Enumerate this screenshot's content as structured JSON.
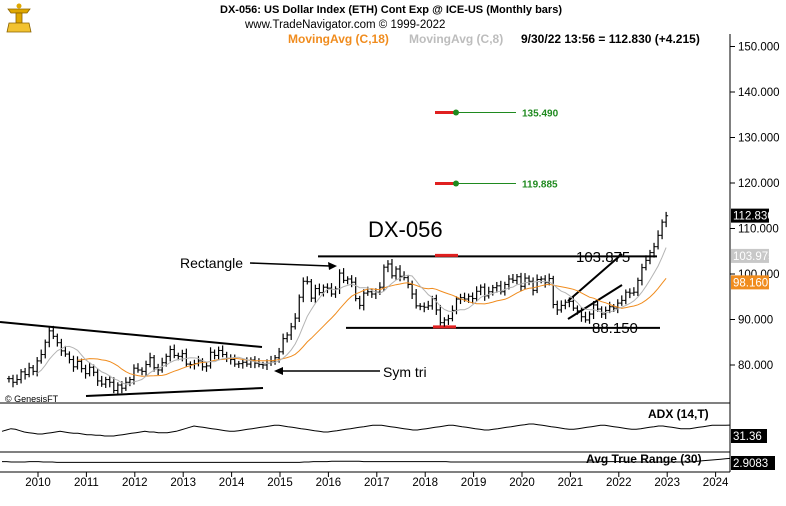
{
  "header": {
    "title_line": "DX-056:  US Dollar Index (ETH) Cont Exp @ ICE-US  (Monthly bars)",
    "copyright": "www.TradeNavigator.com © 1999-2022",
    "ma18_label": "MovingAvg (C,18)",
    "ma8_label": "MovingAvg (C,8)",
    "last_quote": "9/30/22 13:56 = 112.830 (+4.215)"
  },
  "watermark": "© GenesisFT",
  "colors": {
    "bars": "#000000",
    "ma18": "#f08c1e",
    "ma8": "#b4b4b4",
    "target_green": "#1f8a1f",
    "target_red": "#e02020"
  },
  "chart_data": [
    {
      "type": "ohlc",
      "title": "DX-056",
      "period": "Monthly bars",
      "y_axis_ticks": [
        "80.000",
        "90.000",
        "100.000",
        "110.000",
        "120.000",
        "130.000",
        "140.000",
        "150.000"
      ],
      "ylim": [
        72,
        155
      ],
      "x_axis_ticks": [
        "2010",
        "2011",
        "2012",
        "2013",
        "2014",
        "2015",
        "2016",
        "2017",
        "2018",
        "2019",
        "2020",
        "2021",
        "2022",
        "2023",
        "2024"
      ],
      "closes": {
        "x_start": 2009.4,
        "x_step": 0.0833,
        "values": [
          77.0,
          76.2,
          76.8,
          78.5,
          77.9,
          79.4,
          78.6,
          80.9,
          82.3,
          85.0,
          87.5,
          86.3,
          84.9,
          83.1,
          82.4,
          81.2,
          79.6,
          80.8,
          79.2,
          78.1,
          79.5,
          78.4,
          76.5,
          75.8,
          76.8,
          76.2,
          74.4,
          75.6,
          74.9,
          76.2,
          76.8,
          79.3,
          78.9,
          78.6,
          80.1,
          81.6,
          79.4,
          78.9,
          80.5,
          81.9,
          83.4,
          82.1,
          81.9,
          82.5,
          80.2,
          80.1,
          80.3,
          80.9,
          79.6,
          79.8,
          82.8,
          82.1,
          83.2,
          82.3,
          81.5,
          81.2,
          80.2,
          80.3,
          80.6,
          80.2,
          81.1,
          80.4,
          80.1,
          80.0,
          80.4,
          80.9,
          81.6,
          82.9,
          85.8,
          86.6,
          88.4,
          90.3,
          94.9,
          98.4,
          98.3,
          94.7,
          96.8,
          95.9,
          97.1,
          96.9,
          95.6,
          96.7,
          100.2,
          98.6,
          98.9,
          98.2,
          94.6,
          93.1,
          95.8,
          96.1,
          95.6,
          96.0,
          97.1,
          101.5,
          102.2,
          99.6,
          101.1,
          99.5,
          99.2,
          97.7,
          95.6,
          93.0,
          92.9,
          92.7,
          93.0,
          94.6,
          92.1,
          89.3,
          89.9,
          90.2,
          92.0,
          94.5,
          94.8,
          94.5,
          95.1,
          94.6,
          96.2,
          97.1,
          95.2,
          96.1,
          97.0,
          97.4,
          96.1,
          97.7,
          98.9,
          98.6,
          99.4,
          97.3,
          99.1,
          98.4,
          96.4,
          98.8,
          98.9,
          98.1,
          99.0,
          93.3,
          92.1,
          93.1,
          93.8,
          94.0,
          92.5,
          91.9,
          90.6,
          89.9,
          91.2,
          93.2,
          92.3,
          91.2,
          92.0,
          92.8,
          92.5,
          93.6,
          94.2,
          96.0,
          95.8,
          96.0,
          98.6,
          101.4,
          103.0,
          104.7,
          106.0,
          108.5,
          111.4,
          112.8
        ]
      },
      "ma18_start_index": 17,
      "ma8_start_index": 7,
      "annotations": [
        {
          "text": "DX-056",
          "kind": "title"
        },
        {
          "text": "Rectangle",
          "kind": "pattern_label"
        },
        {
          "text": "Sym tri",
          "kind": "pattern_label"
        },
        {
          "text": "103.875",
          "value": 103.875,
          "kind": "resistance_line"
        },
        {
          "text": "88.150",
          "value": 88.15,
          "kind": "support_line"
        },
        {
          "text": "135.490",
          "value": 135.49,
          "kind": "price_target"
        },
        {
          "text": "119.885",
          "value": 119.885,
          "kind": "price_target"
        }
      ],
      "price_labels": [
        {
          "text": "112.830",
          "value": 112.83,
          "style": "last"
        },
        {
          "text": "103.975",
          "value": 103.975,
          "style": "ma8"
        },
        {
          "text": "98.160",
          "value": 98.16,
          "style": "ma18"
        }
      ],
      "grid": false
    },
    {
      "type": "line",
      "title": "ADX (14,T)",
      "last_value_label": "31.36",
      "ylim": [
        0,
        60
      ],
      "values": [
        22,
        24,
        26,
        25,
        23,
        21,
        20,
        19,
        18,
        18,
        19,
        20,
        21,
        22,
        21,
        20,
        19,
        19,
        18,
        17,
        17,
        16,
        16,
        15,
        15,
        15,
        16,
        17,
        18,
        19,
        20,
        21,
        22,
        21,
        21,
        20,
        20,
        20,
        21,
        22,
        24,
        26,
        28,
        30,
        29,
        28,
        27,
        26,
        25,
        24,
        23,
        22,
        22,
        23,
        24,
        25,
        26,
        27,
        28,
        29,
        30,
        31,
        31,
        30,
        29,
        28,
        27,
        26,
        25,
        24,
        23,
        22,
        21,
        21,
        22,
        23,
        24,
        25,
        26,
        27,
        28,
        29,
        30,
        31,
        31,
        31,
        30,
        29,
        28,
        27,
        26,
        25,
        24,
        24,
        25,
        26,
        27,
        28,
        29,
        30,
        31,
        31,
        30,
        29,
        28,
        27,
        26,
        25,
        24,
        24,
        25,
        26,
        27,
        28,
        29,
        30,
        31,
        32,
        33,
        33,
        32,
        31,
        30,
        29,
        28,
        27,
        26,
        25,
        25,
        26,
        27,
        28,
        29,
        30,
        31,
        31,
        30,
        29,
        28,
        27,
        26,
        25,
        25,
        26,
        27,
        28,
        29,
        30,
        30,
        29,
        28,
        27,
        26,
        26,
        26,
        27,
        28,
        29,
        30,
        31,
        31,
        31,
        31,
        31.36
      ]
    },
    {
      "type": "line",
      "title": "Avg True Range (30)",
      "last_value_label": "2.9083",
      "ylim": [
        0,
        4
      ],
      "values": [
        2.1,
        2.1,
        2.0,
        2.0,
        2.0,
        2.0,
        2.1,
        2.1,
        2.1,
        2.0,
        2.0,
        2.0,
        1.9,
        1.9,
        1.9,
        1.9,
        1.9,
        1.9,
        1.9,
        1.9,
        1.9,
        1.9,
        1.9,
        1.9,
        1.9,
        1.9,
        1.9,
        1.9,
        1.9,
        1.9,
        1.9,
        1.9,
        1.9,
        1.9,
        1.9,
        1.9,
        1.9,
        1.9,
        1.9,
        1.9,
        1.9,
        1.9,
        1.9,
        1.9,
        1.9,
        1.9,
        1.9,
        1.9,
        1.9,
        1.9,
        1.9,
        1.9,
        1.9,
        1.9,
        1.9,
        1.9,
        1.9,
        1.9,
        1.9,
        1.9,
        1.9,
        1.9,
        1.9,
        1.9,
        1.9,
        1.9,
        2.0,
        2.0,
        2.1,
        2.1,
        2.1,
        2.1,
        2.2,
        2.2,
        2.2,
        2.2,
        2.2,
        2.2,
        2.2,
        2.1,
        2.1,
        2.1,
        2.1,
        2.1,
        2.1,
        2.1,
        2.1,
        2.1,
        2.1,
        2.1,
        2.1,
        2.1,
        2.1,
        2.1,
        2.1,
        2.1,
        2.1,
        2.1,
        2.0,
        2.0,
        2.0,
        2.0,
        2.0,
        2.0,
        2.0,
        2.0,
        2.0,
        2.0,
        2.0,
        2.0,
        2.0,
        2.0,
        2.0,
        2.0,
        2.0,
        2.0,
        2.0,
        2.0,
        2.0,
        2.0,
        2.0,
        2.0,
        2.0,
        2.0,
        2.0,
        2.0,
        2.0,
        2.0,
        2.0,
        2.0,
        2.0,
        2.1,
        2.1,
        2.1,
        2.1,
        2.1,
        2.1,
        2.0,
        2.0,
        2.0,
        2.0,
        2.0,
        2.0,
        2.0,
        2.0,
        2.0,
        2.0,
        2.0,
        2.0,
        2.0,
        2.0,
        2.1,
        2.2,
        2.3,
        2.4,
        2.5,
        2.6,
        2.7,
        2.8,
        2.9083
      ]
    }
  ]
}
